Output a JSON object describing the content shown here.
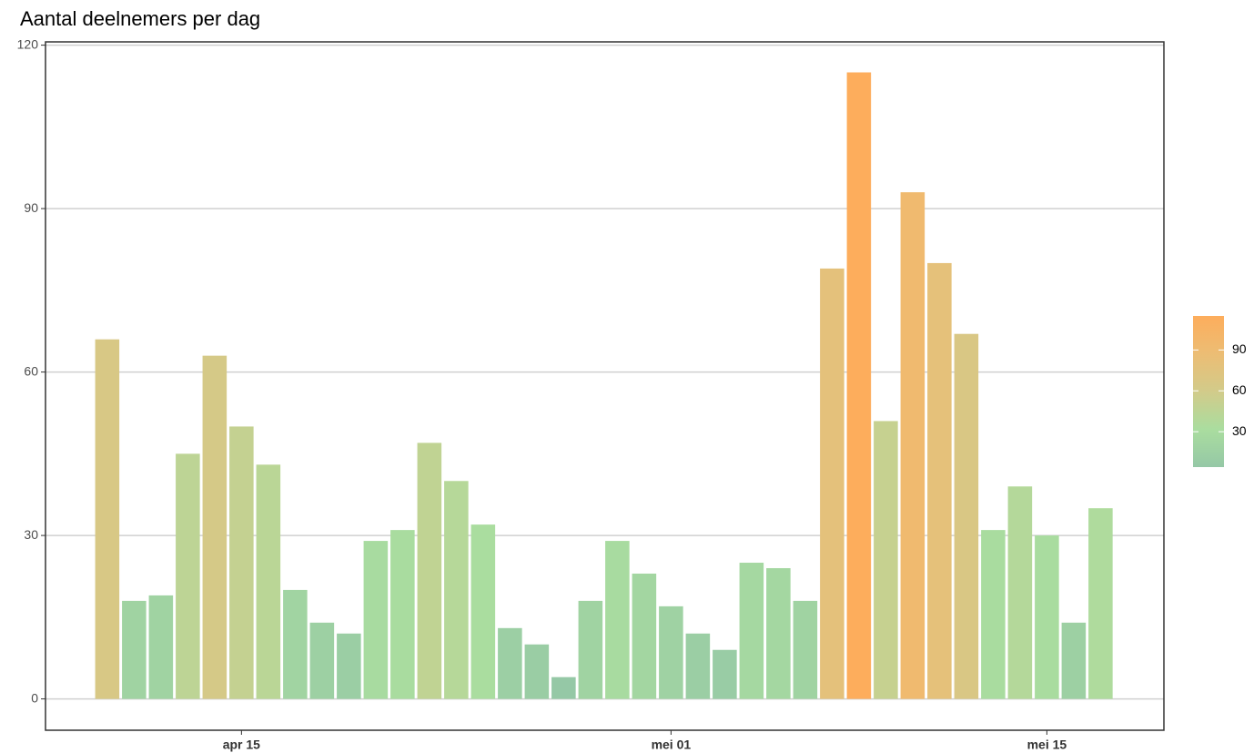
{
  "chart_data": {
    "type": "bar",
    "title": "Aantal deelnemers per dag",
    "categories": [
      null,
      null,
      null,
      null,
      null,
      "apr 15",
      null,
      null,
      null,
      null,
      null,
      null,
      null,
      null,
      null,
      null,
      null,
      null,
      null,
      null,
      null,
      "mei 01",
      null,
      null,
      null,
      null,
      null,
      null,
      null,
      null,
      null,
      null,
      null,
      null,
      null,
      "mei 15",
      null,
      null
    ],
    "values": [
      66,
      18,
      19,
      45,
      63,
      50,
      43,
      20,
      14,
      12,
      29,
      31,
      47,
      40,
      32,
      13,
      10,
      4,
      18,
      29,
      23,
      17,
      12,
      9,
      25,
      24,
      18,
      79,
      115,
      51,
      93,
      80,
      67,
      31,
      39,
      30,
      14,
      35
    ],
    "ylim": [
      -5.75,
      120.6
    ],
    "yticks": [
      0,
      30,
      60,
      90,
      120
    ],
    "grid": true,
    "color_scale": {
      "range": [
        4,
        115
      ],
      "colors": [
        "#95c8a6",
        "#aadd9f",
        "#d2cb8a",
        "#ecbd74",
        "#fdad5c"
      ],
      "ticks": [
        30,
        60,
        90
      ]
    }
  }
}
